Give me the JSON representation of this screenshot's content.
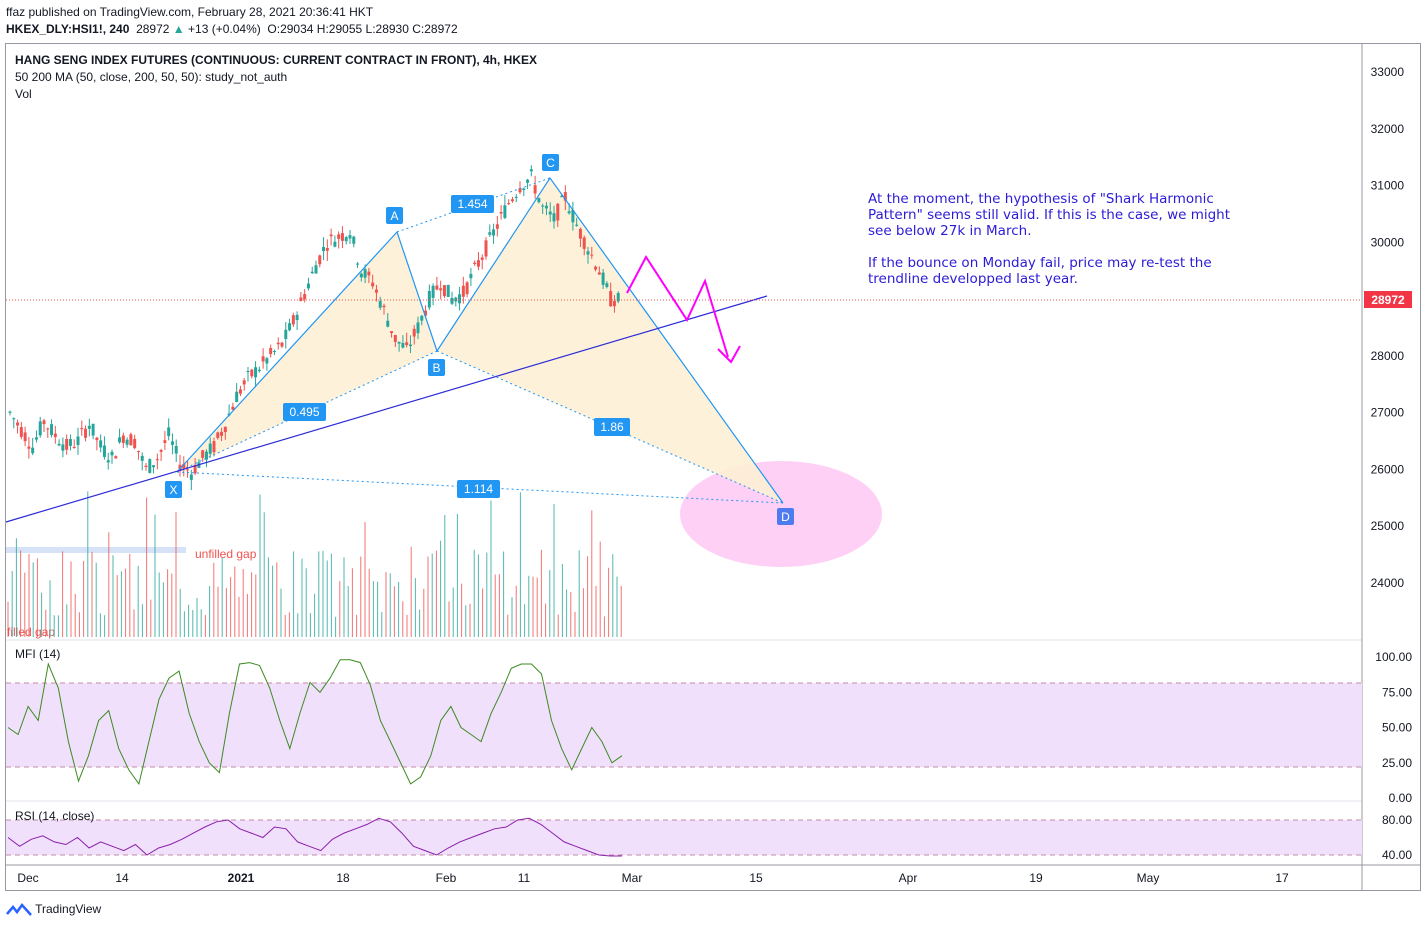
{
  "header": {
    "publish_line": "ffaz published on TradingView.com, February 28, 2021 20:36:41 HKT",
    "symbol": "HKEX_DLY:HSI1!, 240",
    "last": "28972",
    "change": "+13 (+0.04%)",
    "open": "O:29034",
    "high": "H:29055",
    "low": "L:28930",
    "close": "C:28972"
  },
  "legend": {
    "title": "HANG SENG INDEX FUTURES (CONTINUOUS: CURRENT CONTRACT IN FRONT), 4h, HKEX",
    "ma": "50 200 MA (50, close, 200, 50, 50): study_not_auth",
    "vol": "Vol",
    "mfi": "MFI (14)",
    "rsi": "RSI (14, close)"
  },
  "annotation": {
    "line1": "At the moment, the hypothesis of \"Shark Harmonic Pattern\" seems still valid. If this is the case, we might see below 27k in March.",
    "line2": "If the bounce on Monday fail, price may re-test the trendline developped last year."
  },
  "gap_labels": {
    "unfilled": "unfilled gap",
    "filled": "filled gap"
  },
  "branding": "TradingView",
  "colors": {
    "up": "#26a69a",
    "down": "#ef5350",
    "pattern_line": "#2196f3",
    "pattern_fill": "#fdf0d5",
    "trendline": "#2d2dd6",
    "arrow": "#ff00ff",
    "target_ellipse": "#ffc8f5",
    "oscillator_band": "#f0e0fc",
    "mfi_line": "#3d8a21",
    "rsi_line": "#8a1fa8",
    "price_tag": "#f23645"
  },
  "chart_data": {
    "type": "candlestick",
    "price_axis": [
      24000,
      25000,
      26000,
      27000,
      28000,
      29000,
      30000,
      31000,
      32000,
      33000
    ],
    "time_axis": [
      "Dec",
      "14",
      "2021",
      "18",
      "Feb",
      "11",
      "Mar",
      "15",
      "Apr",
      "19",
      "May",
      "17"
    ],
    "last_price_tag": "28972",
    "pattern": {
      "name": "Shark Harmonic",
      "points": [
        {
          "label": "X",
          "price": 25900
        },
        {
          "label": "A",
          "price": 30200
        },
        {
          "label": "B",
          "price": 28100
        },
        {
          "label": "C",
          "price": 31150
        },
        {
          "label": "D",
          "price": 25400
        }
      ],
      "ratios": [
        "0.495",
        "1.454",
        "1.86",
        "1.114"
      ]
    },
    "price_path": [
      [
        "Dec",
        27000
      ],
      [
        "",
        26700
      ],
      [
        "",
        26400
      ],
      [
        "",
        26850
      ],
      [
        "",
        26600
      ],
      [
        "",
        26400
      ],
      [
        "",
        26500
      ],
      [
        "",
        26800
      ],
      [
        "",
        26400
      ],
      [
        "",
        26200
      ],
      [
        "",
        26600
      ],
      [
        "",
        26500
      ],
      [
        "",
        26000
      ],
      [
        "",
        26200
      ],
      [
        "",
        26600
      ],
      [
        "",
        26100
      ],
      [
        "",
        25950
      ],
      [
        "",
        26200
      ],
      [
        "",
        26400
      ],
      [
        "",
        26800
      ],
      [
        "",
        27300
      ],
      [
        "",
        27600
      ],
      [
        "",
        27800
      ],
      [
        "",
        28000
      ],
      [
        "",
        28200
      ],
      [
        "",
        28600
      ],
      [
        "",
        29100
      ],
      [
        "",
        29600
      ],
      [
        "",
        30000
      ],
      [
        "",
        30100
      ],
      [
        "",
        30200
      ],
      [
        "",
        29500
      ],
      [
        "",
        29300
      ],
      [
        "",
        28800
      ],
      [
        "",
        28300
      ],
      [
        "",
        28100
      ],
      [
        "",
        28500
      ],
      [
        "",
        29000
      ],
      [
        "",
        29300
      ],
      [
        "",
        29000
      ],
      [
        "",
        29100
      ],
      [
        "",
        29500
      ],
      [
        "",
        29900
      ],
      [
        "",
        30300
      ],
      [
        "",
        30700
      ],
      [
        "",
        31000
      ],
      [
        "",
        31150
      ],
      [
        "",
        30600
      ],
      [
        "",
        30400
      ],
      [
        "",
        30800
      ],
      [
        "",
        30300
      ],
      [
        "",
        29900
      ],
      [
        "",
        29500
      ],
      [
        "",
        29000
      ],
      [
        "",
        28972
      ]
    ],
    "indicators": {
      "mfi_axis": [
        "100.00",
        "75.00",
        "50.00",
        "25.00",
        "0.00"
      ],
      "mfi_values": [
        50,
        45,
        65,
        55,
        95,
        78,
        40,
        12,
        30,
        55,
        62,
        35,
        20,
        10,
        40,
        70,
        85,
        90,
        60,
        40,
        25,
        18,
        60,
        95,
        96,
        94,
        78,
        55,
        35,
        60,
        82,
        75,
        85,
        98,
        98,
        96,
        80,
        55,
        40,
        25,
        10,
        15,
        30,
        55,
        65,
        50,
        45,
        40,
        60,
        75,
        92,
        95,
        95,
        88,
        55,
        35,
        20,
        35,
        50,
        40,
        25,
        30
      ],
      "rsi_axis": [
        "80.00",
        "40.00"
      ],
      "rsi_values": [
        60,
        50,
        58,
        62,
        55,
        52,
        60,
        48,
        55,
        50,
        45,
        52,
        40,
        48,
        52,
        58,
        65,
        72,
        78,
        80,
        70,
        65,
        60,
        72,
        70,
        55,
        50,
        45,
        58,
        65,
        70,
        75,
        82,
        78,
        65,
        50,
        45,
        40,
        48,
        55,
        60,
        65,
        70,
        72,
        80,
        82,
        75,
        65,
        55,
        50,
        45,
        40,
        38,
        36
      ]
    }
  }
}
